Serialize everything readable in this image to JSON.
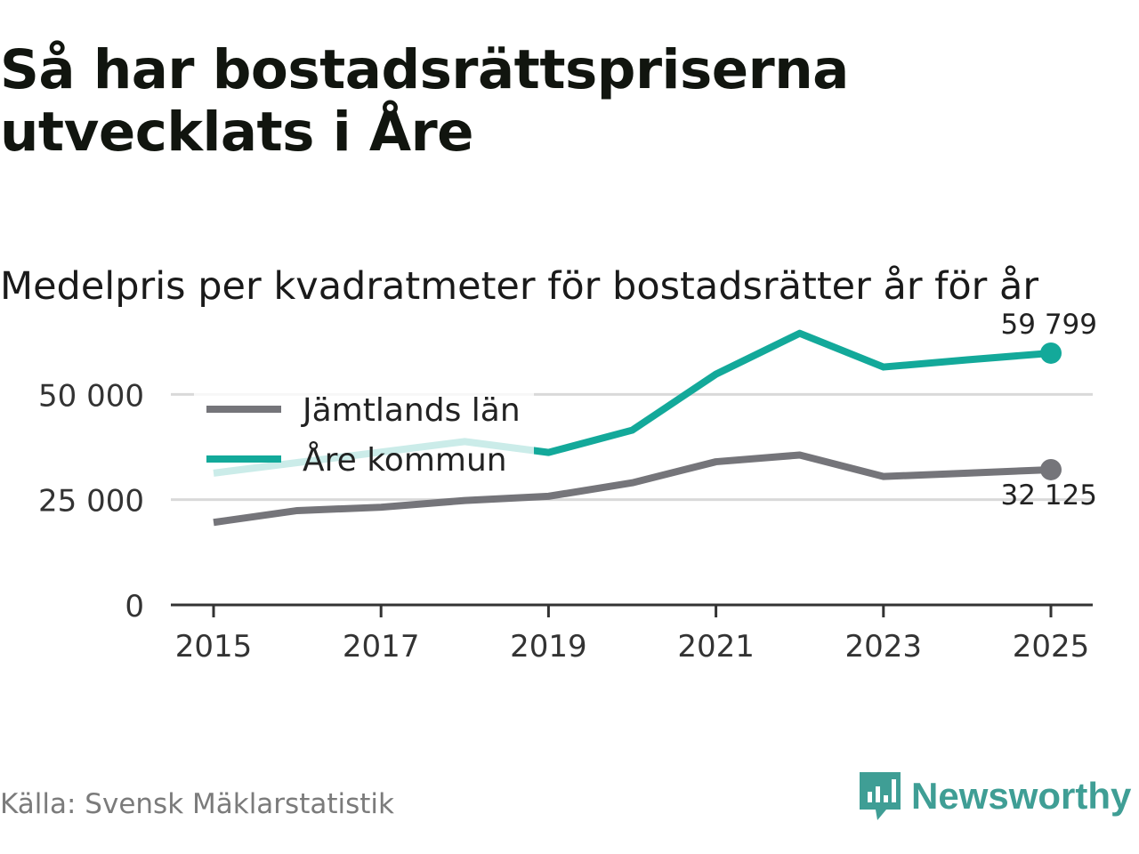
{
  "header": {
    "title": "Så har bostadsrättspriserna utvecklats i Åre",
    "subtitle": "Medelpris per kvadratmeter för bostadsrätter år för år"
  },
  "footer": {
    "source": "Källa: Svensk Mäklarstatistik",
    "brand": "Newsworthy"
  },
  "colors": {
    "jamtland": "#75757a",
    "are": "#13a99a",
    "grid": "#d9d9d9",
    "axis": "#333333",
    "brand": "#3f9e95"
  },
  "chart_data": {
    "type": "line",
    "title": "Medelpris per kvadratmeter för bostadsrätter år för år",
    "xlabel": "",
    "ylabel": "",
    "x": [
      2015,
      2016,
      2017,
      2018,
      2019,
      2020,
      2021,
      2022,
      2023,
      2024,
      2025
    ],
    "xticks": [
      "2015",
      "2017",
      "2019",
      "2021",
      "2023",
      "2025"
    ],
    "yticks": [
      0,
      25000,
      50000
    ],
    "ytick_labels": [
      "0",
      "25 000",
      "50 000"
    ],
    "ylim": [
      0,
      60000
    ],
    "xlim": [
      2015,
      2025
    ],
    "grid": true,
    "legend_position": "top-left",
    "series": [
      {
        "name": "Jämtlands län",
        "color_key": "jamtland",
        "values": [
          19600,
          22400,
          23200,
          24800,
          25800,
          29000,
          34000,
          35600,
          30500,
          31300,
          32125
        ],
        "end_label": "32 125"
      },
      {
        "name": "Åre kommun",
        "color_key": "are",
        "values": [
          31300,
          33800,
          36300,
          38800,
          36200,
          41500,
          54800,
          64500,
          56500,
          58200,
          59799
        ],
        "end_label": "59 799"
      }
    ]
  }
}
